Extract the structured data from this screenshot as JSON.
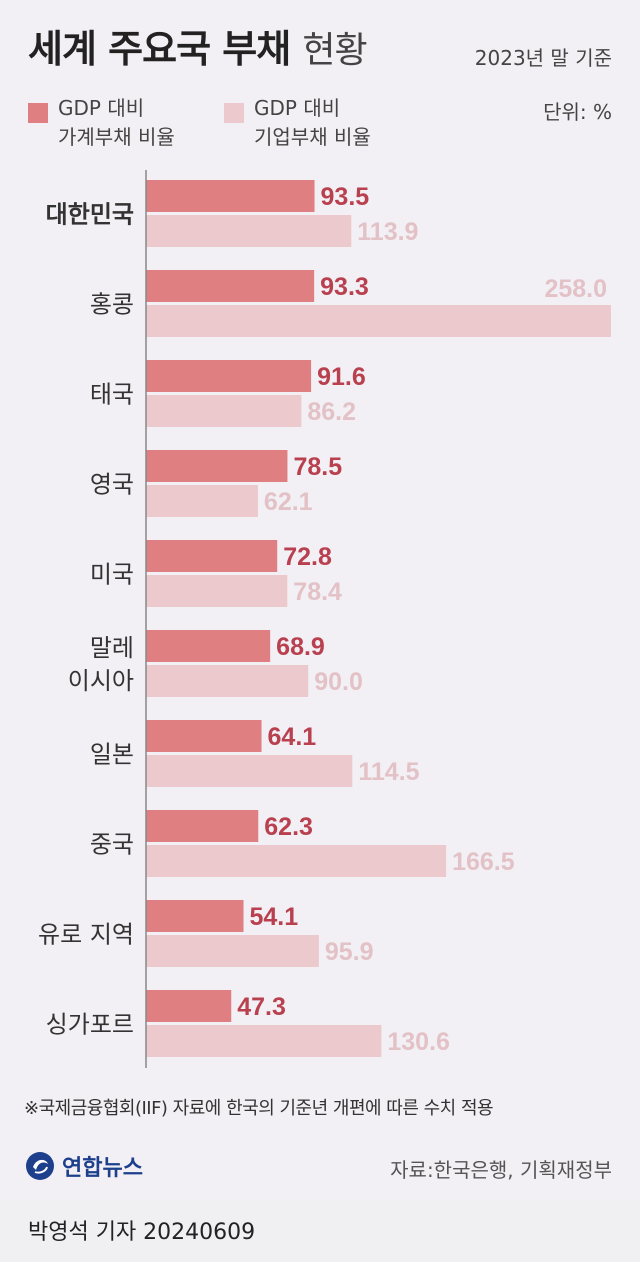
{
  "header": {
    "title_bold": "세계 주요국 부채",
    "title_light": "현황",
    "basis": "2023년 말 기준",
    "unit": "단위: %"
  },
  "legend": {
    "household_line1": "GDP 대비",
    "household_line2": "가계부채 비율",
    "corporate_line1": "GDP 대비",
    "corporate_line2": "기업부채 비율"
  },
  "colors": {
    "household_bar": "#e07f82",
    "corporate_bar": "#ecc9cd",
    "household_label": "#b8404f",
    "corporate_label": "#e3c2c7",
    "axis": "#888888"
  },
  "chart_data": {
    "type": "bar",
    "orientation": "horizontal",
    "categories": [
      [
        "대한민국"
      ],
      [
        "홍콩"
      ],
      [
        "태국"
      ],
      [
        "영국"
      ],
      [
        "미국"
      ],
      [
        "말레",
        "이시아"
      ],
      [
        "일본"
      ],
      [
        "중국"
      ],
      [
        "유로 지역"
      ],
      [
        "싱가포르"
      ]
    ],
    "series": [
      {
        "name": "GDP 대비 가계부채 비율",
        "values": [
          93.5,
          93.3,
          91.6,
          78.5,
          72.8,
          68.9,
          64.1,
          62.3,
          54.1,
          47.3
        ]
      },
      {
        "name": "GDP 대비 기업부채 비율",
        "values": [
          113.9,
          258.0,
          86.2,
          62.1,
          78.4,
          90.0,
          114.5,
          166.5,
          95.9,
          130.6
        ]
      }
    ],
    "xlim": [
      0,
      258.0
    ]
  },
  "footer": {
    "footnote": "※국제금융협회(IIF) 자료에 한국의 기준년 개편에 따른 수치 적용",
    "logo_text": "연합뉴스",
    "source": "자료:한국은행, 기획재정부",
    "byline": "박영석 기자  20240609"
  }
}
